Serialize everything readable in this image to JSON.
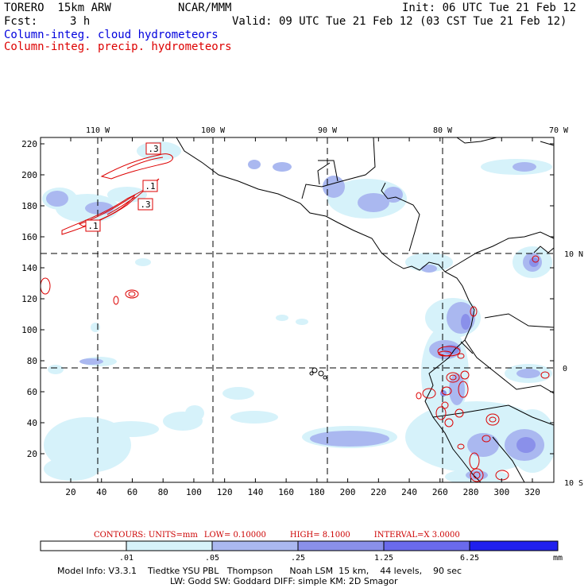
{
  "header": {
    "model": "TORERO  15km ARW",
    "center": "NCAR/MMM",
    "init": "Init: 06 UTC Tue 21 Feb 12",
    "fcst_label": "Fcst:",
    "fcst_value": "3 h",
    "valid": "Valid: 09 UTC Tue 21 Feb 12 (03 CST Tue 21 Feb 12)",
    "field1": "Column-integ. cloud hydrometeors",
    "field2": "Column-integ. precip. hydrometeors"
  },
  "colors": {
    "cloud_text": "#0000dd",
    "precip_text": "#dd0000",
    "shade_levels": [
      "#ffffff",
      "#d6f2fa",
      "#aab8f0",
      "#8a90ea",
      "#6a6aec",
      "#2020ee"
    ]
  },
  "map": {
    "top_lon_labels": [
      "110 W",
      "100 W",
      "90 W",
      "80 W",
      "70 W"
    ],
    "y_ticks": [
      "220",
      "200",
      "180",
      "160",
      "140",
      "120",
      "100",
      "80",
      "60",
      "40",
      "20"
    ],
    "x_ticks": [
      "20",
      "40",
      "60",
      "80",
      "100",
      "120",
      "140",
      "160",
      "180",
      "200",
      "220",
      "240",
      "260",
      "280",
      "300",
      "320"
    ],
    "right_lat_labels": [
      "10 N",
      "0",
      "10 S"
    ],
    "contour_labels": [
      ".3",
      ".1",
      ".3",
      ".1"
    ]
  },
  "contours": {
    "units": "CONTOURS:  UNITS=mm",
    "low": "LOW= 0.10000",
    "high": "HIGH=  8.1000",
    "interval": "INTERVAL=X  3.0000"
  },
  "colorbar": {
    "labels": [
      ".01",
      ".05",
      ".25",
      "1.25",
      "6.25"
    ],
    "unit": "mm"
  },
  "model_info": {
    "line1": "Model Info: V3.3.1    Tiedtke YSU PBL   Thompson      Noah LSM  15 km,    44 levels,    90 sec",
    "line2": "LW: Godd SW: Goddard DIFF: simple KM: 2D Smagor"
  }
}
